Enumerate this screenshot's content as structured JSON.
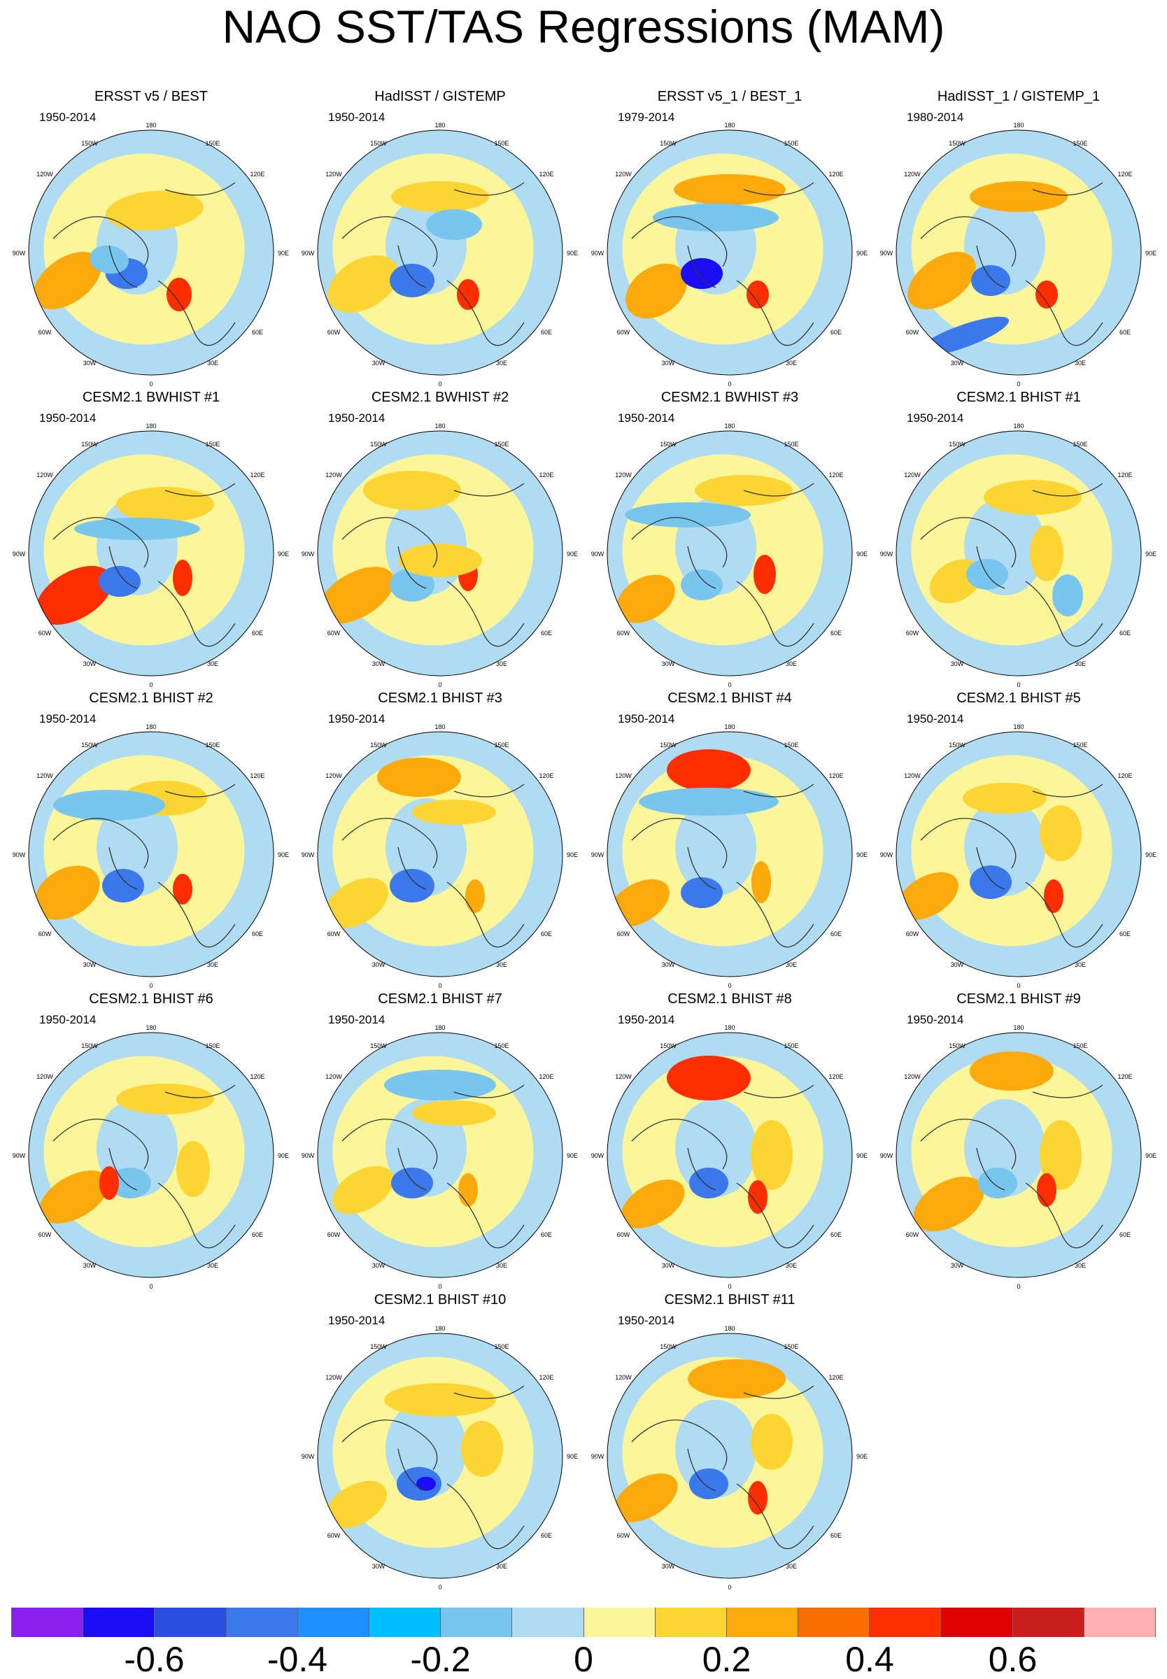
{
  "title": "NAO SST/TAS Regressions (MAM)",
  "map_labels": {
    "lon_180": "180",
    "lon_150w": "150W",
    "lon_150e": "150E",
    "lon_120w": "120W",
    "lon_120e": "120E",
    "lon_90w": "90W",
    "lon_90e": "90E",
    "lon_60w": "60W",
    "lon_60e": "60E",
    "lon_30w": "30W",
    "lon_30e": "30E",
    "lon_0": "0"
  },
  "panels": [
    {
      "title": "ERSST v5 / BEST",
      "period": "1950-2014"
    },
    {
      "title": "HadISST / GISTEMP",
      "period": "1950-2014"
    },
    {
      "title": "ERSST v5_1 / BEST_1",
      "period": "1979-2014"
    },
    {
      "title": "HadISST_1 / GISTEMP_1",
      "period": "1980-2014"
    },
    {
      "title": "CESM2.1 BWHIST #1",
      "period": "1950-2014"
    },
    {
      "title": "CESM2.1 BWHIST #2",
      "period": "1950-2014"
    },
    {
      "title": "CESM2.1 BWHIST #3",
      "period": "1950-2014"
    },
    {
      "title": "CESM2.1 BHIST #1",
      "period": "1950-2014"
    },
    {
      "title": "CESM2.1 BHIST #2",
      "period": "1950-2014"
    },
    {
      "title": "CESM2.1 BHIST #3",
      "period": "1950-2014"
    },
    {
      "title": "CESM2.1 BHIST #4",
      "period": "1950-2014"
    },
    {
      "title": "CESM2.1 BHIST #5",
      "period": "1950-2014"
    },
    {
      "title": "CESM2.1 BHIST #6",
      "period": "1950-2014"
    },
    {
      "title": "CESM2.1 BHIST #7",
      "period": "1950-2014"
    },
    {
      "title": "CESM2.1 BHIST #8",
      "period": "1950-2014"
    },
    {
      "title": "CESM2.1 BHIST #9",
      "period": "1950-2014"
    },
    {
      "title": "CESM2.1 BHIST #10",
      "period": "1950-2014"
    },
    {
      "title": "CESM2.1 BHIST #11",
      "period": "1950-2014"
    }
  ],
  "colorbar": {
    "colors": [
      "#8a1ff0",
      "#1a0df5",
      "#2a4fe0",
      "#3a78ec",
      "#1f90ff",
      "#00bfff",
      "#78c6f0",
      "#b0dcf3",
      "#fbf69a",
      "#fcd532",
      "#fca90c",
      "#f96e00",
      "#ff2e00",
      "#e00000",
      "#c81e1e",
      "#ffb0b0"
    ],
    "labels": [
      "-0.6",
      "-0.4",
      "-0.2",
      "0",
      "0.2",
      "0.4",
      "0.6"
    ]
  },
  "palette": {
    "neutral_positive": "#fbf69a",
    "neutral_negative": "#b0dcf3",
    "warm": "#fcd532",
    "orange": "#fca90c",
    "red": "#ff2e00",
    "cool": "#78c6f0",
    "blue": "#3a78ec",
    "deep_blue": "#1a0df5",
    "land_outline": "#333333"
  }
}
